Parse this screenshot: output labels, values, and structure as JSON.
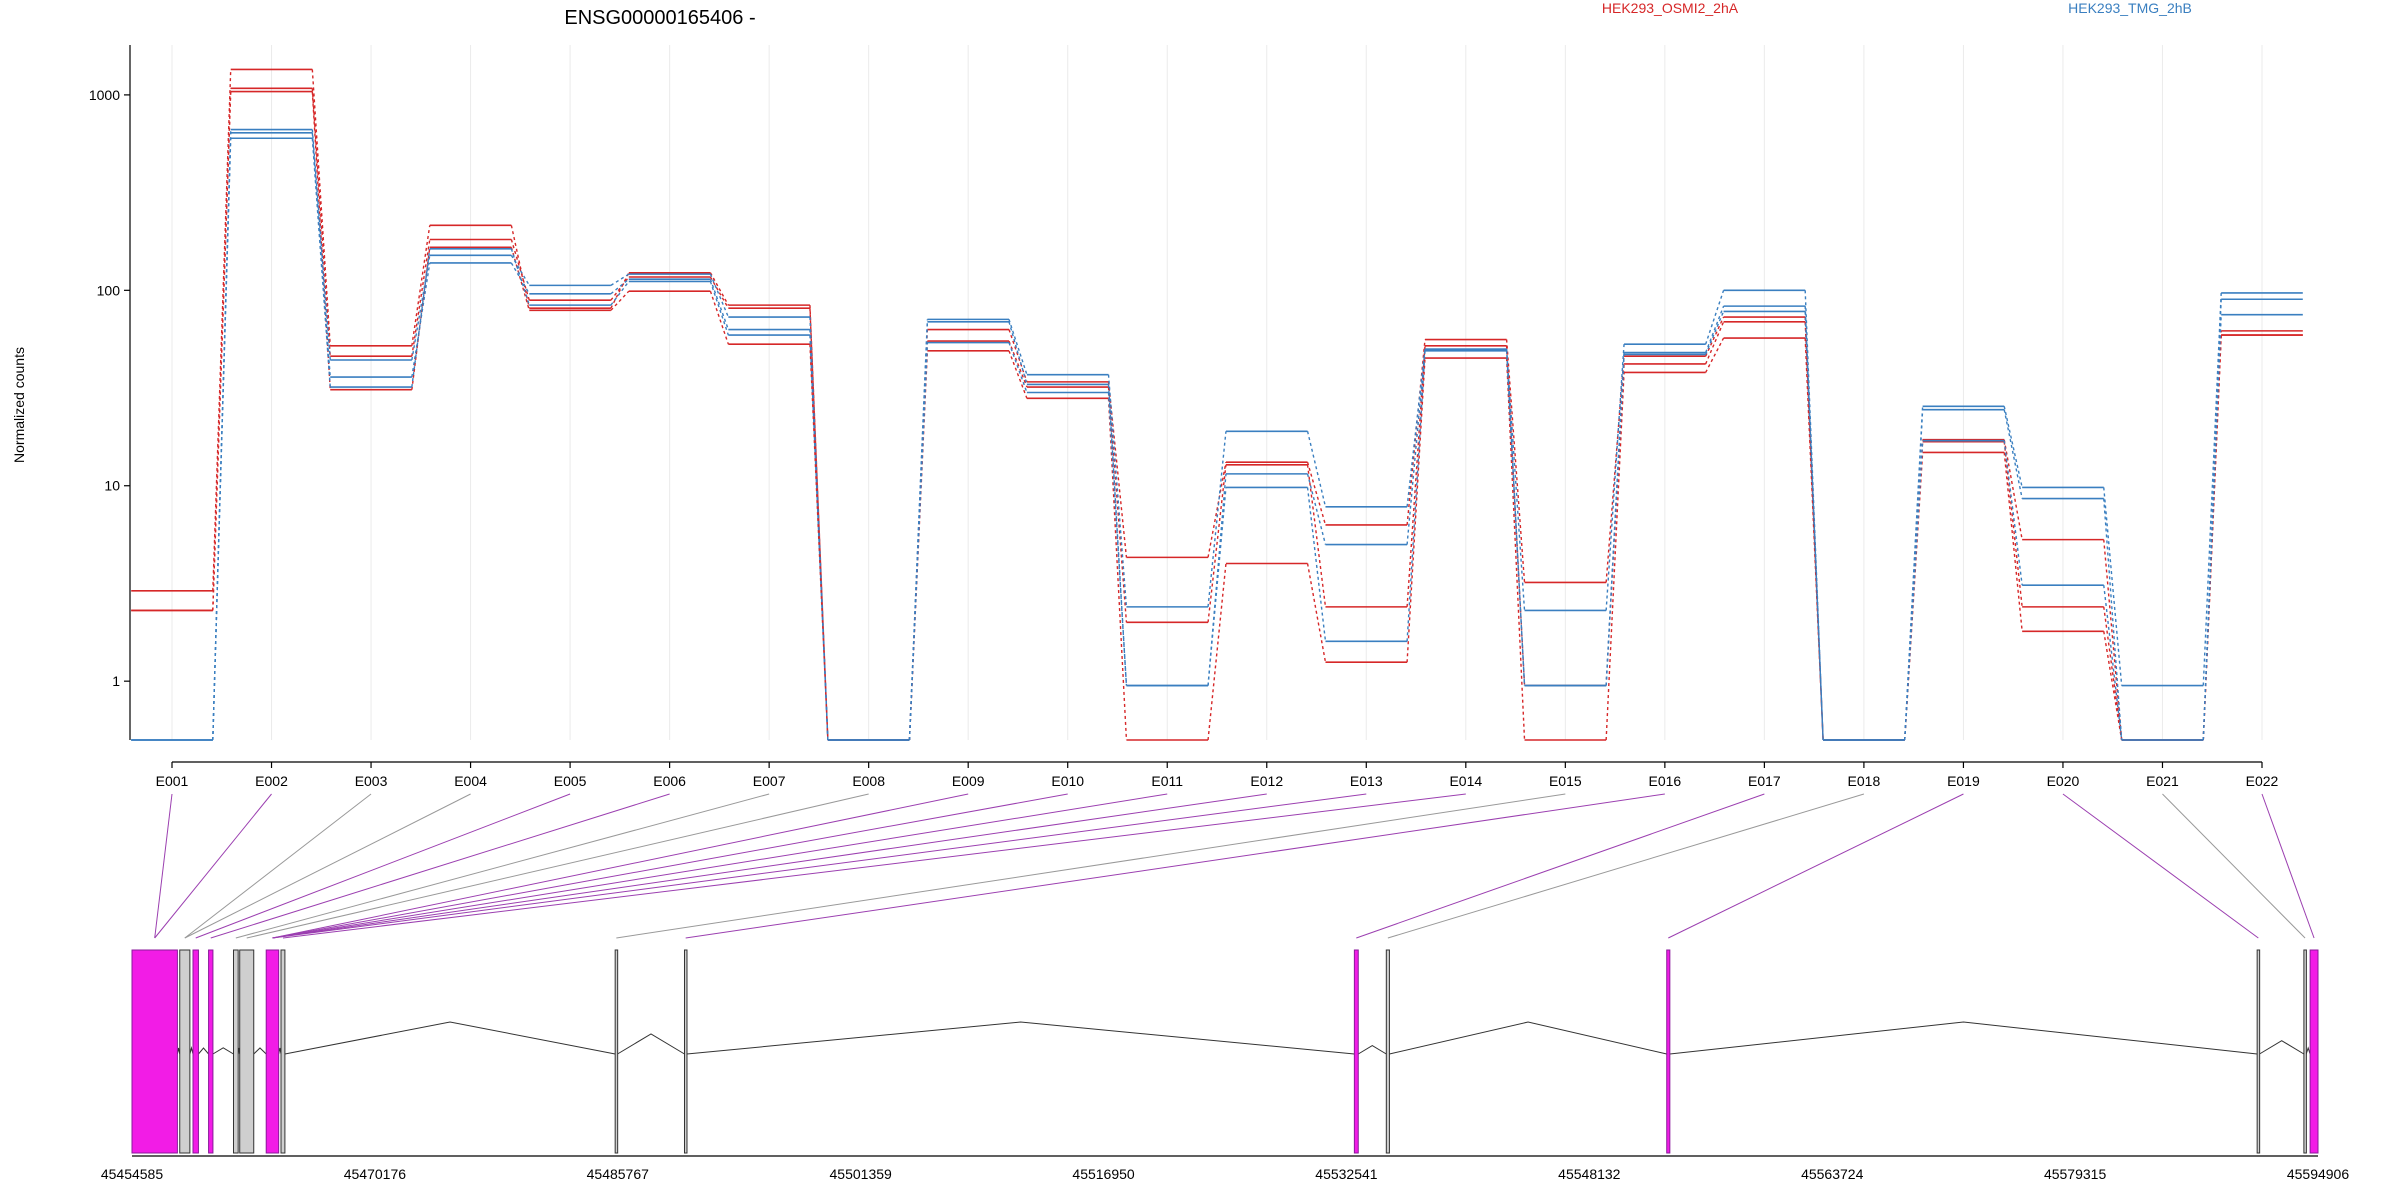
{
  "chart_data": {
    "type": "line",
    "title": "ENSG00000165406 -",
    "ylabel": "Normalized counts",
    "xlabel": "",
    "y_scale": "log",
    "ylim": [
      0.5,
      1800
    ],
    "grid": "vertical",
    "legend_position": "top-right",
    "colors": {
      "HEK293_OSMI2_2hA": "#d62728",
      "HEK293_TMG_2hB": "#3a7fc0"
    },
    "y_ticks": [
      {
        "value": 1,
        "label": "1"
      },
      {
        "value": 10,
        "label": "10"
      },
      {
        "value": 100,
        "label": "100"
      },
      {
        "value": 1000,
        "label": "1000"
      }
    ],
    "categories": [
      "E001",
      "E002",
      "E003",
      "E004",
      "E005",
      "E006",
      "E007",
      "E008",
      "E009",
      "E010",
      "E011",
      "E012",
      "E013",
      "E014",
      "E015",
      "E016",
      "E017",
      "E018",
      "E019",
      "E020",
      "E021",
      "E022"
    ],
    "series": [
      {
        "name": "HEK293_OSMI2_2hA",
        "group": "HEK293_OSMI2_2hA",
        "values": [
          2.9,
          1350,
          52,
          215,
          81,
          123,
          84,
          0.5,
          63,
          34,
          4.3,
          13.2,
          6.3,
          56,
          3.2,
          46,
          73,
          0.5,
          17.2,
          5.3,
          0.5,
          59
        ]
      },
      {
        "name": "",
        "group": "HEK293_OSMI2_2hA",
        "values": [
          2.3,
          1080,
          46,
          182,
          89,
          117,
          81,
          0.5,
          55,
          32,
          2.0,
          12.8,
          2.4,
          52,
          0.95,
          42,
          69,
          0.5,
          16.8,
          2.4,
          0.5,
          62
        ]
      },
      {
        "name": "",
        "group": "HEK293_OSMI2_2hA",
        "values": [
          2.3,
          1040,
          31,
          166,
          79,
          99,
          53,
          0.5,
          49,
          28,
          0.5,
          4.0,
          1.25,
          45,
          0.5,
          38,
          57,
          0.5,
          14.8,
          1.8,
          0.5,
          59
        ]
      },
      {
        "name": "HEK293_TMG_2hB",
        "group": "HEK293_TMG_2hB",
        "values": [
          0.5,
          665,
          44,
          151,
          106,
          121,
          73,
          0.5,
          71,
          37,
          2.4,
          19,
          7.8,
          50,
          2.3,
          53,
          100,
          0.5,
          25.5,
          9.8,
          0.95,
          97
        ]
      },
      {
        "name": "",
        "group": "HEK293_TMG_2hB",
        "values": [
          0.5,
          640,
          36,
          138,
          96,
          114,
          63,
          0.5,
          69,
          33,
          0.95,
          11.5,
          5.0,
          50,
          0.95,
          48,
          83,
          0.5,
          24.5,
          8.6,
          0.5,
          90
        ]
      },
      {
        "name": "",
        "group": "HEK293_TMG_2hB",
        "values": [
          0.5,
          600,
          32,
          163,
          84,
          111,
          59,
          0.5,
          54,
          30,
          0.95,
          9.8,
          1.6,
          49,
          0.95,
          47,
          78,
          0.5,
          17.0,
          3.1,
          0.5,
          75
        ]
      }
    ],
    "legend": [
      {
        "label": "HEK293_OSMI2_2hA",
        "color": "#d62728"
      },
      {
        "label": "HEK293_TMG_2hB",
        "color": "#3a7fc0"
      }
    ],
    "gene_model": {
      "genomic_range": [
        45454585,
        45594906
      ],
      "ticks": [
        "45454585",
        "45470176",
        "45485767",
        "45501359",
        "45516950",
        "45532541",
        "45548132",
        "45563724",
        "45579315",
        "45594906"
      ],
      "exons": [
        {
          "id": "E001",
          "start": 45454585,
          "end": 45457500,
          "highlight": true
        },
        {
          "id": "E002",
          "start": 45457650,
          "end": 45458300,
          "highlight": false
        },
        {
          "id": "E003",
          "start": 45458500,
          "end": 45458850,
          "highlight": true
        },
        {
          "id": "E004",
          "start": 45459500,
          "end": 45459780,
          "highlight": true
        },
        {
          "id": "E005",
          "start": 45461100,
          "end": 45461400,
          "highlight": false
        },
        {
          "id": "E006",
          "start": 45461500,
          "end": 45462400,
          "highlight": false
        },
        {
          "id": "E007",
          "start": 45463200,
          "end": 45464000,
          "highlight": true
        },
        {
          "id": "E008",
          "start": 45464150,
          "end": 45464400,
          "highlight": false
        },
        {
          "id": "E009",
          "start": 45485600,
          "end": 45485750,
          "highlight": false
        },
        {
          "id": "E010",
          "start": 45490050,
          "end": 45490200,
          "highlight": false
        },
        {
          "id": "E011",
          "start": 45533050,
          "end": 45533300,
          "highlight": true
        },
        {
          "id": "E012",
          "start": 45535100,
          "end": 45535300,
          "highlight": false
        },
        {
          "id": "E013",
          "start": 45553100,
          "end": 45553300,
          "highlight": true
        },
        {
          "id": "E014",
          "start": 45591000,
          "end": 45591150,
          "highlight": false
        },
        {
          "id": "E015",
          "start": 45594000,
          "end": 45594150,
          "highlight": false
        },
        {
          "id": "E016",
          "start": 45594400,
          "end": 45594906,
          "highlight": true
        }
      ],
      "connectors": [
        {
          "bin": "E001",
          "exon": "E001",
          "highlight": true
        },
        {
          "bin": "E002",
          "exon": "E001",
          "highlight": true
        },
        {
          "bin": "E003",
          "exon": "E002",
          "highlight": false
        },
        {
          "bin": "E004",
          "exon": "E002",
          "highlight": false
        },
        {
          "bin": "E005",
          "exon": "E003",
          "highlight": true
        },
        {
          "bin": "E006",
          "exon": "E004",
          "highlight": true
        },
        {
          "bin": "E007",
          "exon": "E005",
          "highlight": false
        },
        {
          "bin": "E008",
          "exon": "E006",
          "highlight": false
        },
        {
          "bin": "E009",
          "exon": "E007",
          "highlight": true
        },
        {
          "bin": "E010",
          "exon": "E007",
          "highlight": true
        },
        {
          "bin": "E011",
          "exon": "E007",
          "highlight": true
        },
        {
          "bin": "E012",
          "exon": "E007",
          "highlight": true
        },
        {
          "bin": "E013",
          "exon": "E007",
          "highlight": true
        },
        {
          "bin": "E014",
          "exon": "E008",
          "highlight": true
        },
        {
          "bin": "E015",
          "exon": "E009",
          "highlight": false
        },
        {
          "bin": "E016",
          "exon": "E010",
          "highlight": true
        },
        {
          "bin": "E017",
          "exon": "E011",
          "highlight": true
        },
        {
          "bin": "E018",
          "exon": "E012",
          "highlight": false
        },
        {
          "bin": "E019",
          "exon": "E013",
          "highlight": true
        },
        {
          "bin": "E020",
          "exon": "E014",
          "highlight": true
        },
        {
          "bin": "E021",
          "exon": "E015",
          "highlight": false
        },
        {
          "bin": "E022",
          "exon": "E016",
          "highlight": true
        }
      ]
    }
  }
}
